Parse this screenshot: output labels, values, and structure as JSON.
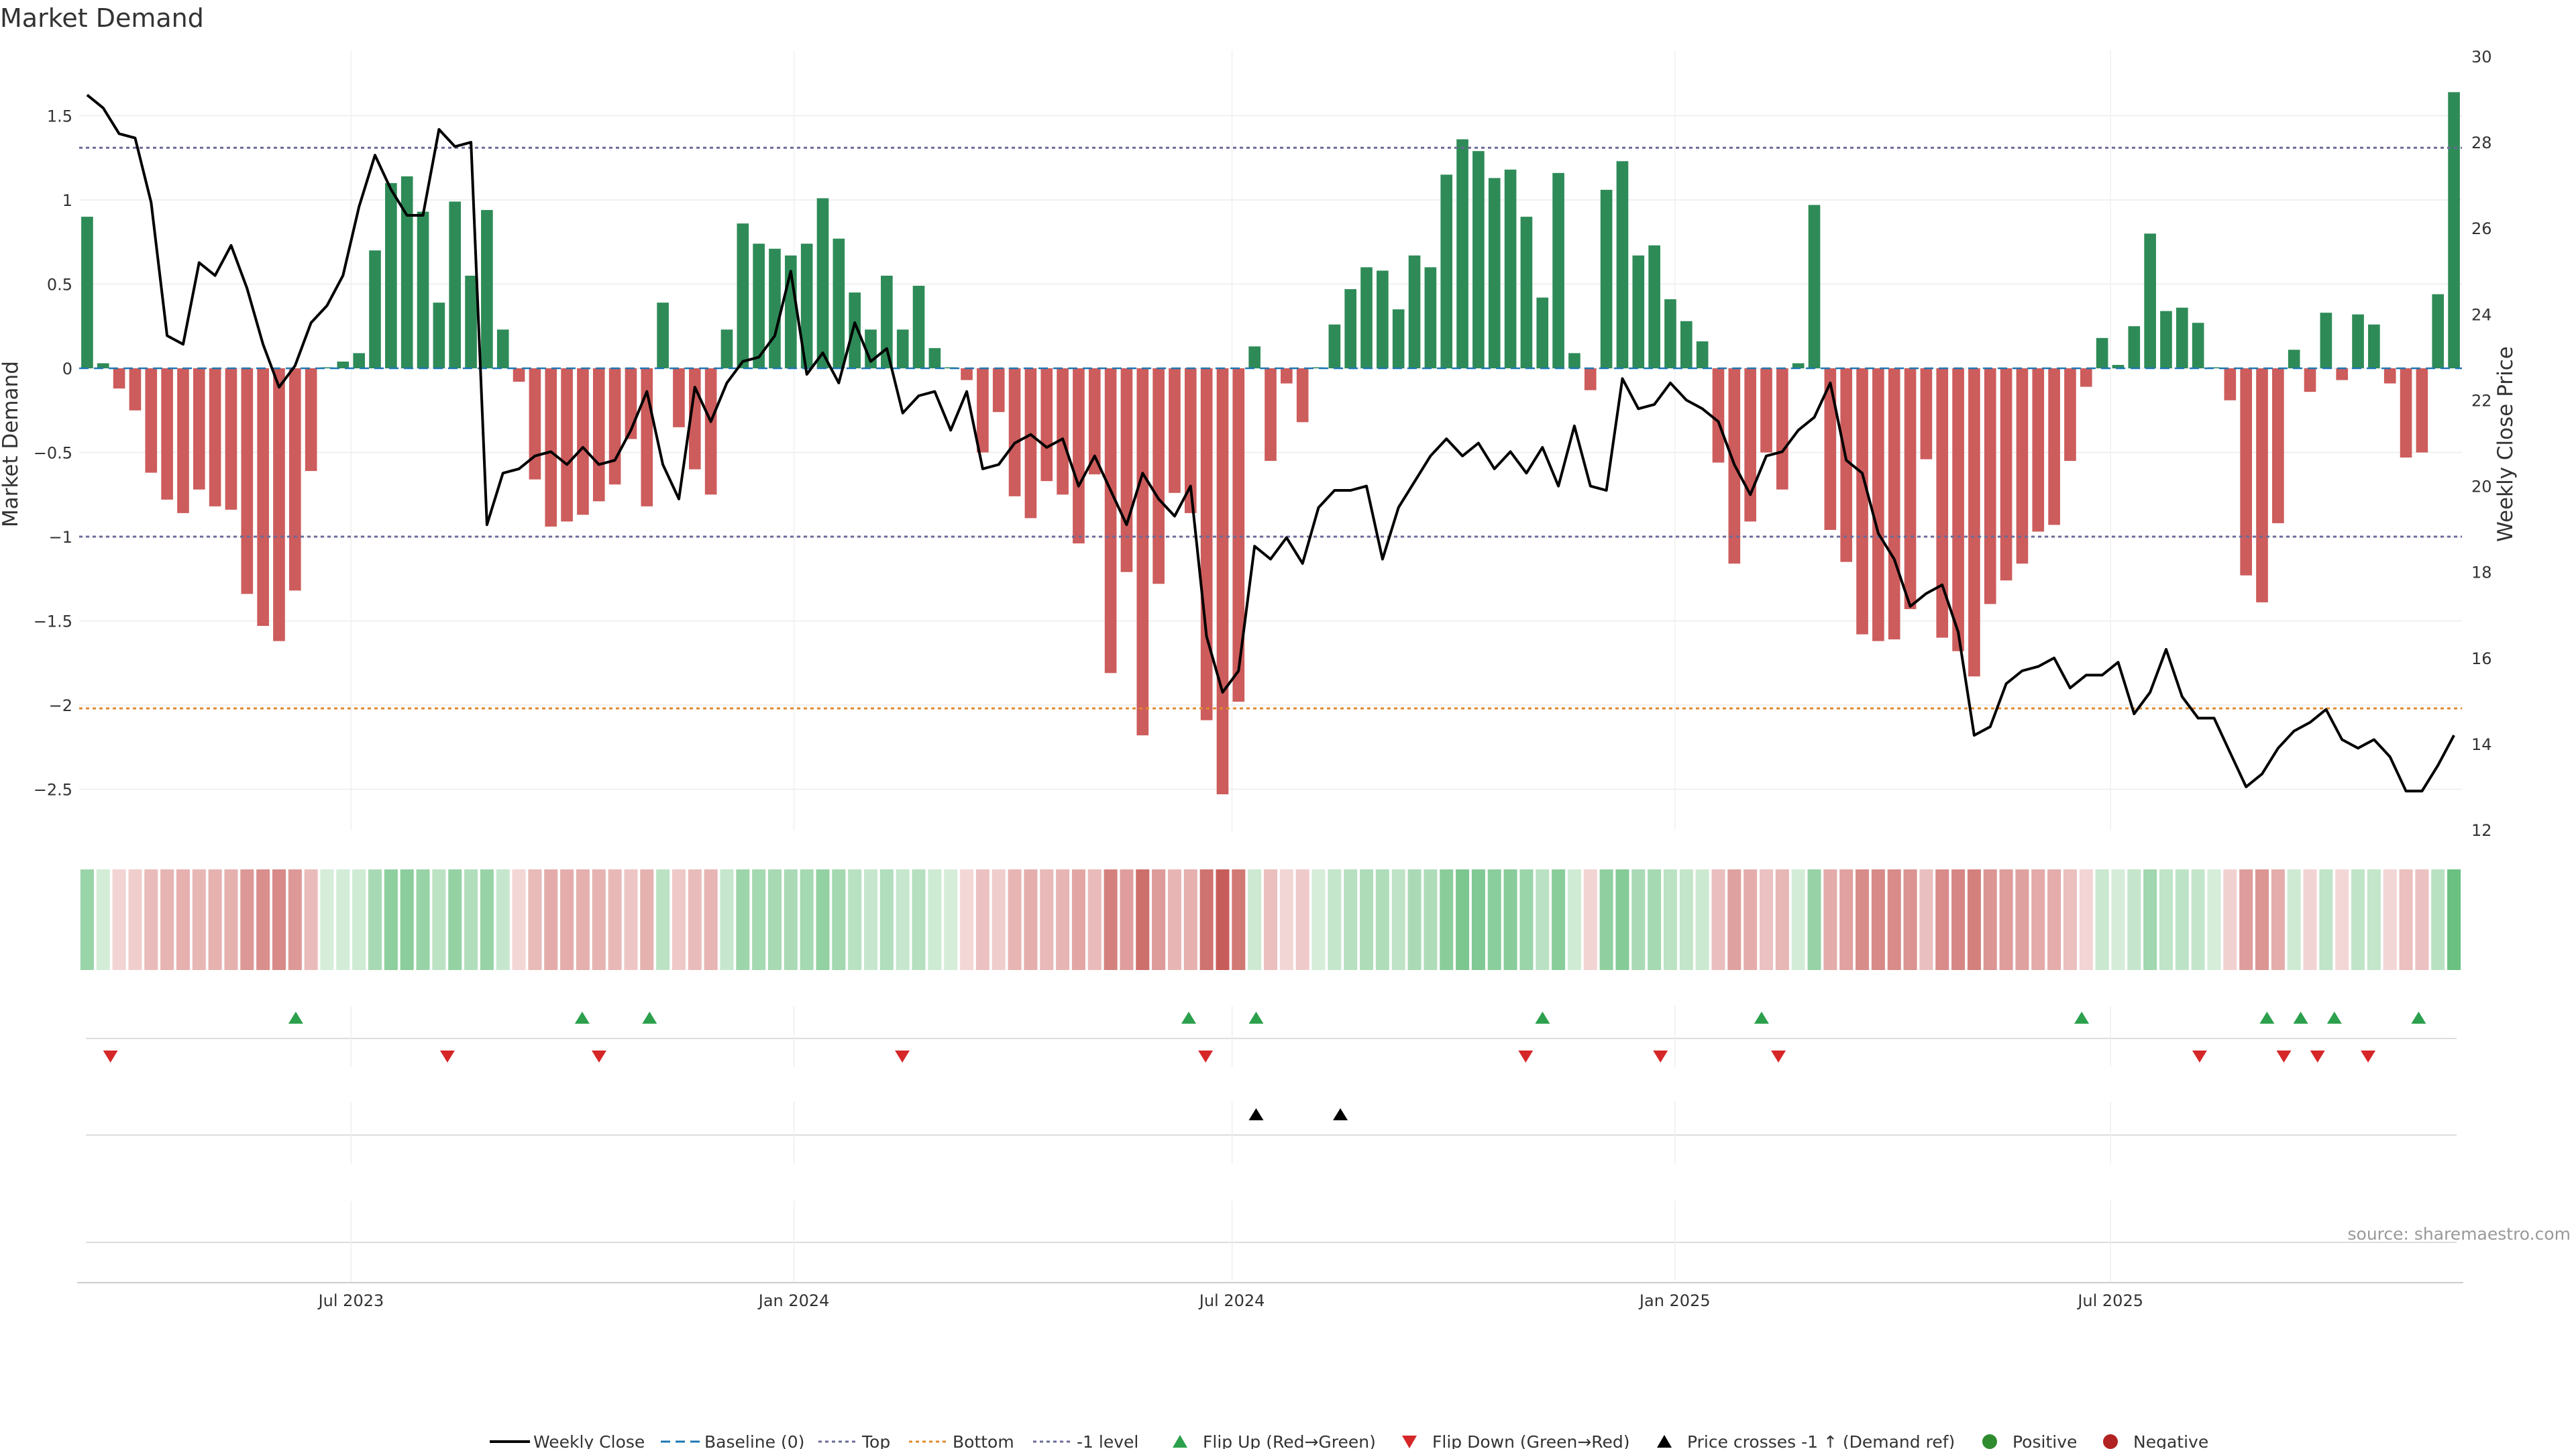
{
  "chart_data": {
    "type": "bar",
    "title": "Market Demand",
    "ylabel": "Market Demand",
    "y2label": "Weekly Close Price",
    "ylim": [
      -2.75,
      1.9
    ],
    "y2lim": [
      12,
      30
    ],
    "yticks": [
      1.5,
      1,
      0.5,
      0,
      -0.5,
      -1,
      -1.5,
      -2,
      -2.5
    ],
    "ytick_labels": [
      "1.5",
      "1",
      "0.5",
      "0",
      "−0.5",
      "−1",
      "−1.5",
      "−2",
      "−2.5"
    ],
    "y2ticks": [
      30,
      28,
      26,
      24,
      22,
      20,
      18,
      16,
      14,
      12
    ],
    "x_start": "2023-03-10",
    "x_end": "2025-11-24",
    "xticks": [
      {
        "date": "2023-07-01",
        "label": "Jul 2023"
      },
      {
        "date": "2024-01-01",
        "label": "Jan 2024"
      },
      {
        "date": "2024-07-01",
        "label": "Jul 2024"
      },
      {
        "date": "2025-01-01",
        "label": "Jan 2025"
      },
      {
        "date": "2025-07-01",
        "label": "Jul 2025"
      }
    ],
    "levels": {
      "top": 1.31,
      "bottom": -2.02,
      "minus_one": -1.0,
      "baseline": 0
    },
    "series": [
      {
        "name": "Market Demand",
        "values": [
          0.9,
          0.03,
          -0.12,
          -0.25,
          -0.62,
          -0.78,
          -0.86,
          -0.72,
          -0.82,
          -0.84,
          -1.34,
          -1.53,
          -1.62,
          -1.32,
          -0.61,
          0.0,
          0.04,
          0.09,
          0.7,
          1.1,
          1.14,
          0.93,
          0.39,
          0.99,
          0.55,
          0.94,
          0.23,
          -0.08,
          -0.66,
          -0.94,
          -0.91,
          -0.87,
          -0.79,
          -0.69,
          -0.42,
          -0.82,
          0.39,
          -0.35,
          -0.6,
          -0.75,
          0.23,
          0.86,
          0.74,
          0.71,
          0.67,
          0.74,
          1.01,
          0.77,
          0.45,
          0.23,
          0.55,
          0.23,
          0.49,
          0.12,
          0.0,
          -0.07,
          -0.5,
          -0.26,
          -0.76,
          -0.89,
          -0.67,
          -0.75,
          -1.04,
          -0.63,
          -1.81,
          -1.21,
          -2.18,
          -1.28,
          -0.74,
          -0.86,
          -2.09,
          -2.53,
          -1.98,
          0.13,
          -0.55,
          -0.09,
          -0.32,
          0.0,
          0.26,
          0.47,
          0.6,
          0.58,
          0.35,
          0.67,
          0.6,
          1.15,
          1.36,
          1.29,
          1.13,
          1.18,
          0.9,
          0.42,
          1.16,
          0.09,
          -0.13,
          1.06,
          1.23,
          0.67,
          0.73,
          0.41,
          0.28,
          0.16,
          -0.56,
          -1.16,
          -0.91,
          -0.5,
          -0.72,
          0.03,
          0.97,
          -0.96,
          -1.15,
          -1.58,
          -1.62,
          -1.61,
          -1.43,
          -0.54,
          -1.6,
          -1.68,
          -1.83,
          -1.4,
          -1.26,
          -1.16,
          -0.97,
          -0.93,
          -0.55,
          -0.11,
          0.18,
          0.02,
          0.25,
          0.8,
          0.34,
          0.36,
          0.27,
          0.0,
          -0.19,
          -1.23,
          -1.39,
          -0.92,
          0.11,
          -0.14,
          0.33,
          -0.07,
          0.32,
          0.26,
          -0.09,
          -0.53,
          -0.5,
          0.44,
          1.64
        ]
      },
      {
        "name": "Weekly Close",
        "values": [
          29.1,
          28.8,
          28.2,
          28.1,
          26.6,
          23.5,
          23.3,
          25.2,
          24.9,
          25.6,
          24.6,
          23.3,
          22.3,
          22.8,
          23.8,
          24.2,
          24.9,
          26.5,
          27.7,
          26.9,
          26.3,
          26.3,
          28.3,
          27.9,
          28.0,
          19.1,
          20.3,
          20.4,
          20.7,
          20.8,
          20.5,
          20.9,
          20.5,
          20.6,
          21.3,
          22.2,
          20.5,
          19.7,
          22.3,
          21.5,
          22.4,
          22.9,
          23.0,
          23.5,
          25.0,
          22.6,
          23.1,
          22.4,
          23.8,
          22.9,
          23.2,
          21.7,
          22.1,
          22.2,
          21.3,
          22.2,
          20.4,
          20.5,
          21.0,
          21.2,
          20.9,
          21.1,
          20.0,
          20.7,
          19.9,
          19.1,
          20.3,
          19.7,
          19.3,
          20.0,
          16.5,
          15.2,
          15.7,
          18.6,
          18.3,
          18.8,
          18.2,
          19.5,
          19.9,
          19.9,
          20.0,
          18.3,
          19.5,
          20.1,
          20.7,
          21.1,
          20.7,
          21.0,
          20.4,
          20.8,
          20.3,
          20.9,
          20.0,
          21.4,
          20.0,
          19.9,
          22.5,
          21.8,
          21.9,
          22.4,
          22.0,
          21.8,
          21.5,
          20.5,
          19.8,
          20.7,
          20.8,
          21.3,
          21.6,
          22.4,
          20.6,
          20.3,
          18.9,
          18.3,
          17.2,
          17.5,
          17.7,
          16.6,
          14.2,
          14.4,
          15.4,
          15.7,
          15.8,
          16.0,
          15.3,
          15.6,
          15.6,
          15.9,
          14.7,
          15.2,
          16.2,
          15.1,
          14.6,
          14.6,
          13.8,
          13.0,
          13.3,
          13.9,
          14.3,
          14.5,
          14.8,
          14.1,
          13.9,
          14.1,
          13.7,
          12.9,
          12.9,
          13.5,
          14.2
        ]
      }
    ],
    "flip_up_dates": [
      "2023-06-08",
      "2023-10-05",
      "2023-11-02",
      "2024-06-13",
      "2024-07-11",
      "2024-11-07",
      "2025-02-06",
      "2025-06-19",
      "2025-09-04",
      "2025-09-18",
      "2025-10-02",
      "2025-11-06"
    ],
    "flip_down_dates": [
      "2023-03-23",
      "2023-08-10",
      "2023-10-12",
      "2024-02-15",
      "2024-06-20",
      "2024-10-31",
      "2024-12-26",
      "2025-02-13",
      "2025-08-07",
      "2025-09-11",
      "2025-09-25",
      "2025-10-16"
    ],
    "price_cross_dates": [
      "2024-07-11",
      "2024-08-15"
    ],
    "heatmap_colors": {
      "pos_light": "#d5edd9",
      "pos_dark": "#66be7e",
      "neg_light": "#f4dada",
      "neg_dark": "#c65a56"
    },
    "colors": {
      "bar_pos": "#2e8b57",
      "bar_neg": "#cd5c5c",
      "price": "#000000",
      "top": "#6b6b99",
      "bottom": "#e08a2c",
      "minus_one": "#6b6b99",
      "baseline": "#1f77b4",
      "flip_up": "#2ca04c",
      "flip_down": "#d62728",
      "cross": "#000000",
      "positive": "#2e8b2e",
      "negative": "#b22222"
    },
    "legend": [
      "Weekly Close",
      "Baseline (0)",
      "Top",
      "Bottom",
      "-1 level",
      "Flip Up (Red→Green)",
      "Flip Down (Green→Red)",
      "Price crosses -1 ↑ (Demand ref)",
      "Positive",
      "Negative"
    ]
  },
  "source": "source: sharemaestro.com"
}
